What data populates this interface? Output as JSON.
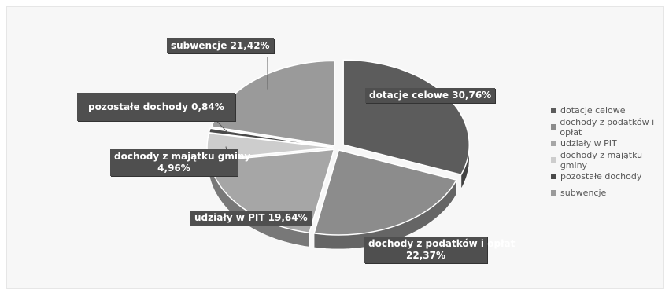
{
  "chart_data": {
    "type": "pie",
    "title": "",
    "legend": "right",
    "slices": [
      {
        "name": "dotacje celowe",
        "value": 30.76,
        "label": "dotacje celowe 30,76%",
        "color": "#5c5c5c"
      },
      {
        "name": "dochody z podatków i opłat",
        "value": 22.37,
        "label_line1": "dochody z podatków i opłat",
        "label_line2": "22,37%",
        "color": "#8c8c8c"
      },
      {
        "name": "udziały w PIT",
        "value": 19.64,
        "label": "udziały w PIT 19,64%",
        "color": "#a6a6a6"
      },
      {
        "name": "dochody z majątku gminy",
        "value": 4.96,
        "label_line1": "dochody z majątku gminy",
        "label_line2": "4,96%",
        "color": "#cdcdcd"
      },
      {
        "name": "pozostałe dochody",
        "value": 0.84,
        "label": "pozostałe dochody 0,84%",
        "color": "#4a4a4a"
      },
      {
        "name": "subwencje",
        "value": 21.42,
        "label": "subwencje 21,42%",
        "color": "#9a9a9a"
      }
    ]
  }
}
